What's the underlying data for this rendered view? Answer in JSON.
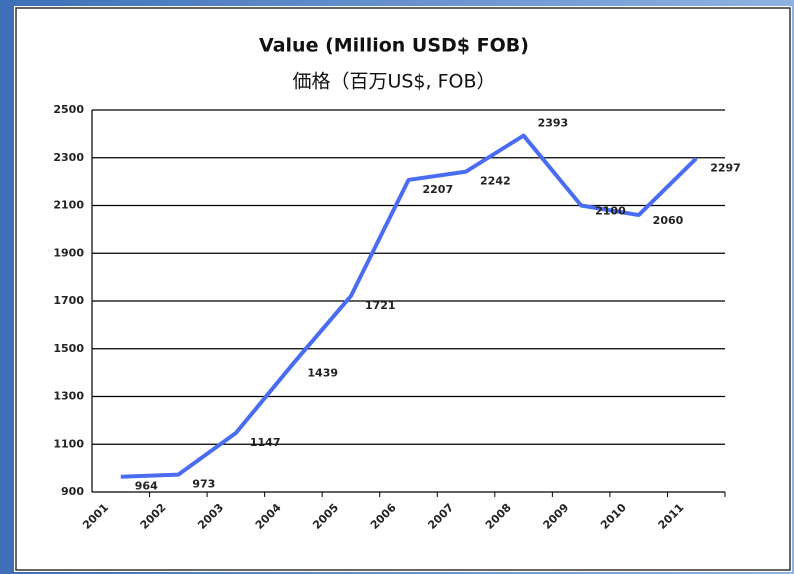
{
  "chart_data": {
    "type": "line",
    "title": "Value (Million USD$ FOB)",
    "subtitle": "価格（百万US$, FOB）",
    "categories": [
      "2001",
      "2002",
      "2003",
      "2004",
      "2005",
      "2006",
      "2007",
      "2008",
      "2009",
      "2010",
      "2011"
    ],
    "series": [
      {
        "name": "Value",
        "color": "#4a6cf0",
        "values": [
          964,
          973,
          1147,
          1439,
          1721,
          2207,
          2242,
          2393,
          2100,
          2060,
          2297
        ]
      }
    ],
    "ylim": [
      900,
      2500
    ],
    "yticks": [
      900,
      1100,
      1300,
      1500,
      1700,
      1900,
      2100,
      2300,
      2500
    ],
    "grid": true
  }
}
